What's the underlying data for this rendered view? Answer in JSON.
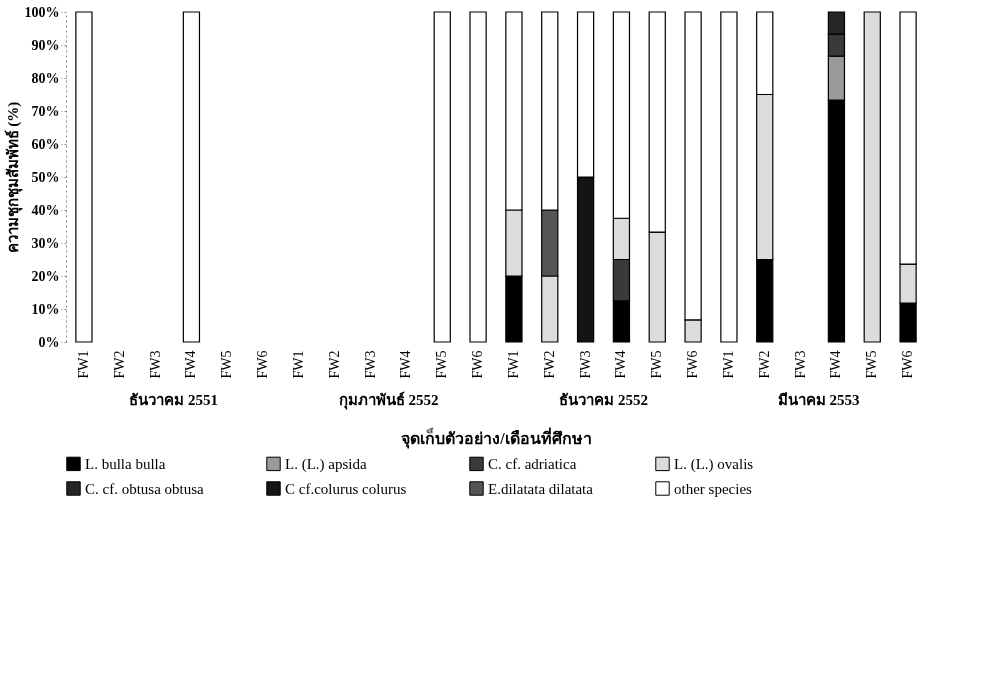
{
  "chart_data": {
    "type": "bar",
    "stacked": true,
    "xlabel": "จุดเก็บตัวอย่าง/เดือนที่ศึกษา",
    "ylabel": "ความชุกชุมสัมพัทธ์ (%)",
    "categories": [
      "FW1",
      "FW2",
      "FW3",
      "FW4",
      "FW5",
      "FW6",
      "FW1",
      "FW2",
      "FW3",
      "FW4",
      "FW5",
      "FW6",
      "FW1",
      "FW2",
      "FW3",
      "FW4",
      "FW5",
      "FW6",
      "FW1",
      "FW2",
      "FW3",
      "FW4",
      "FW5",
      "FW6"
    ],
    "annotations": [
      "ธันวาคม 2551",
      "กุมภาพันธ์ 2552",
      "ธันวาคม 2552",
      "มีนาคม 2553"
    ],
    "ylim": [
      0,
      100
    ],
    "yticks": [
      {
        "value": 0,
        "label": "0%"
      },
      {
        "value": 10,
        "label": "10%"
      },
      {
        "value": 20,
        "label": "20%"
      },
      {
        "value": 30,
        "label": "30%"
      },
      {
        "value": 40,
        "label": "40%"
      },
      {
        "value": 50,
        "label": "50%"
      },
      {
        "value": 60,
        "label": "60%"
      },
      {
        "value": 70,
        "label": "70%"
      },
      {
        "value": 80,
        "label": "80%"
      },
      {
        "value": 90,
        "label": "90%"
      },
      {
        "value": 100,
        "label": "100%"
      }
    ],
    "legend": "bottom",
    "grid": false,
    "series": [
      {
        "name": "L. bulla bulla",
        "color": "#000000",
        "values": [
          null,
          null,
          null,
          null,
          null,
          null,
          null,
          null,
          null,
          null,
          null,
          null,
          20,
          null,
          null,
          12.5,
          null,
          null,
          null,
          25,
          null,
          73.3,
          null,
          11.8
        ]
      },
      {
        "name": "L. (L.) apsida",
        "color": "#9a9a9a",
        "values": [
          null,
          null,
          null,
          null,
          null,
          null,
          null,
          null,
          null,
          null,
          null,
          null,
          null,
          null,
          null,
          null,
          null,
          null,
          null,
          null,
          null,
          13.3,
          null,
          null
        ]
      },
      {
        "name": "C. cf. adriatica",
        "color": "#3a3a3a",
        "values": [
          null,
          null,
          null,
          null,
          null,
          null,
          null,
          null,
          null,
          null,
          null,
          null,
          null,
          null,
          null,
          12.5,
          null,
          null,
          null,
          null,
          null,
          6.7,
          null,
          null
        ]
      },
      {
        "name": "L. (L.) ovalis",
        "color": "#dcdcdc",
        "values": [
          null,
          null,
          null,
          null,
          null,
          null,
          null,
          null,
          null,
          null,
          null,
          null,
          20,
          20,
          null,
          12.5,
          33.3,
          6.7,
          null,
          50,
          null,
          null,
          100,
          11.8
        ]
      },
      {
        "name": "C. cf. obtusa obtusa",
        "color": "#252525",
        "values": [
          null,
          null,
          null,
          null,
          null,
          null,
          null,
          null,
          null,
          null,
          null,
          null,
          null,
          null,
          null,
          null,
          null,
          null,
          null,
          null,
          null,
          6.7,
          null,
          null
        ]
      },
      {
        "name": "C cf.colurus colurus",
        "color": "#141414",
        "values": [
          null,
          null,
          null,
          null,
          null,
          null,
          null,
          null,
          null,
          null,
          null,
          null,
          null,
          null,
          50,
          null,
          null,
          null,
          null,
          null,
          null,
          null,
          null,
          null
        ]
      },
      {
        "name": "E.dilatata dilatata",
        "color": "#555555",
        "values": [
          null,
          null,
          null,
          null,
          null,
          null,
          null,
          null,
          null,
          null,
          null,
          null,
          null,
          20,
          null,
          null,
          null,
          null,
          null,
          null,
          null,
          null,
          null,
          null
        ]
      },
      {
        "name": "other species",
        "color": "#ffffff",
        "values": [
          100,
          null,
          null,
          100,
          null,
          null,
          null,
          null,
          null,
          null,
          100,
          100,
          60,
          60,
          50,
          62.5,
          66.7,
          93.3,
          100,
          25,
          null,
          null,
          null,
          76.4
        ]
      }
    ]
  }
}
